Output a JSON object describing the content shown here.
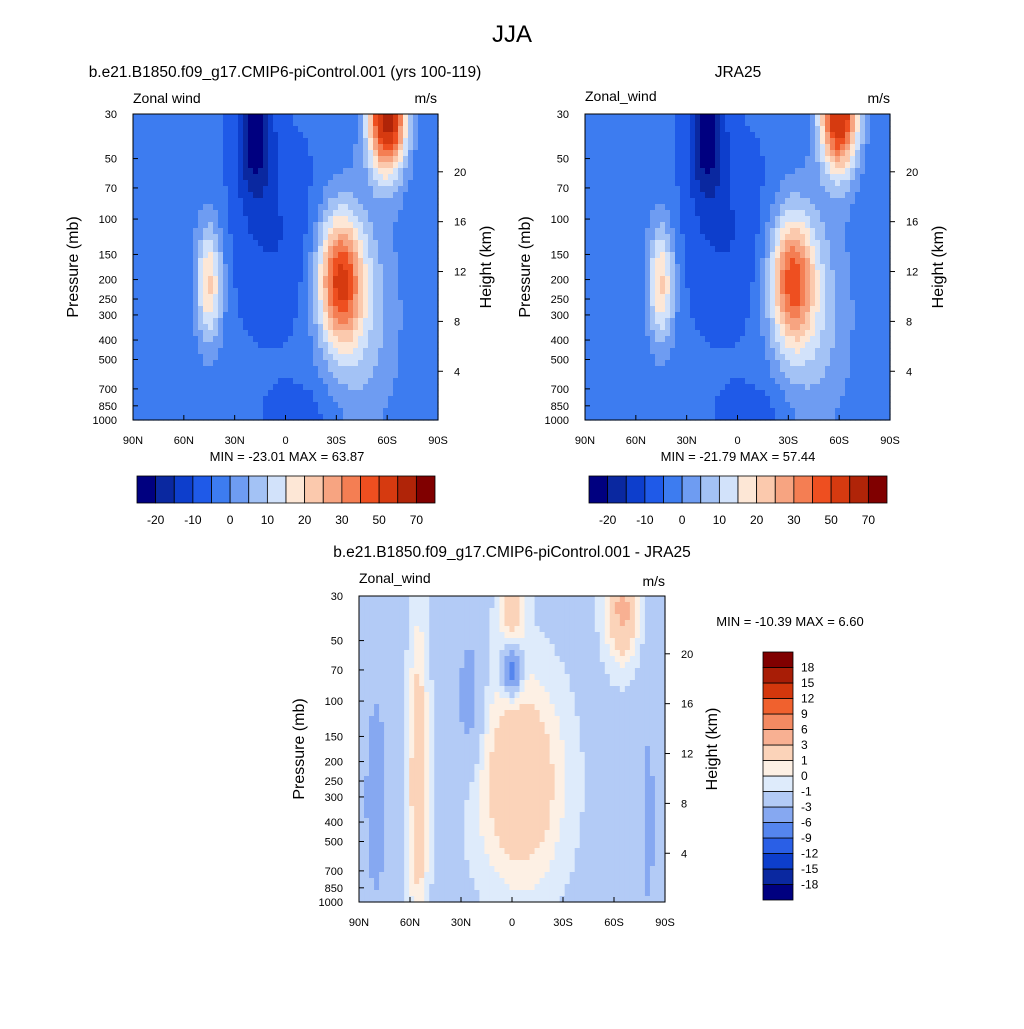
{
  "page": {
    "title": "JJA"
  },
  "colors": {
    "panel_palette": [
      "#000080",
      "#0a28a0",
      "#0d3ecc",
      "#1f5ae8",
      "#3d7cf0",
      "#6e9cf2",
      "#a3c2f5",
      "#d2e2fa",
      "#fde7d6",
      "#fbc9ad",
      "#f7a481",
      "#f47e53",
      "#ee4f20",
      "#d63a10",
      "#b02408",
      "#800000"
    ],
    "diff_palette": [
      "#000080",
      "#0a28a0",
      "#0d3ecc",
      "#2a5fe6",
      "#5585ee",
      "#86a8f1",
      "#b3cbf6",
      "#deebfb",
      "#fdf0e4",
      "#fbd3b9",
      "#f8b092",
      "#f48a62",
      "#f0612e",
      "#d4370c",
      "#a81d06",
      "#800000"
    ]
  },
  "chart_data": [
    {
      "type": "contour",
      "title": "b.e21.B1850.f09_g17.CMIP6-piControl.001 (yrs 100-119)",
      "left_label": "Zonal wind",
      "right_label": "m/s",
      "ylabel": "Pressure (mb)",
      "ylabel_right": "Height (km)",
      "x_ticks": [
        "90N",
        "60N",
        "30N",
        "0",
        "30S",
        "60S",
        "90S"
      ],
      "y_ticks": [
        "30",
        "50",
        "70",
        "100",
        "150",
        "200",
        "250",
        "300",
        "400",
        "500",
        "700",
        "850",
        "1000"
      ],
      "height_ticks": [
        "20",
        "16",
        "12",
        "8",
        "4"
      ],
      "stats": "MIN = -23.01  MAX = 63.87",
      "colorbar_labels": [
        "-20",
        "-10",
        "0",
        "10",
        "20",
        "30",
        "50",
        "70"
      ],
      "jets": [
        {
          "lat": -45,
          "p": 200,
          "u": 22
        },
        {
          "lat": 20,
          "p": 35,
          "u": -22
        },
        {
          "lat": -60,
          "p": 35,
          "u": 60
        },
        {
          "lat": -30,
          "p": 200,
          "u": 45
        }
      ]
    },
    {
      "type": "contour",
      "title": "JRA25",
      "left_label": "Zonal_wind",
      "right_label": "m/s",
      "ylabel": "Pressure (mb)",
      "ylabel_right": "Height (km)",
      "x_ticks": [
        "90N",
        "60N",
        "30N",
        "0",
        "30S",
        "60S",
        "90S"
      ],
      "y_ticks": [
        "30",
        "50",
        "70",
        "100",
        "150",
        "200",
        "250",
        "300",
        "400",
        "500",
        "700",
        "850",
        "1000"
      ],
      "height_ticks": [
        "20",
        "16",
        "12",
        "8",
        "4"
      ],
      "stats": "MIN = -21.79  MAX = 57.44",
      "colorbar_labels": [
        "-20",
        "-10",
        "0",
        "10",
        "20",
        "30",
        "50",
        "70"
      ],
      "jets": [
        {
          "lat": -45,
          "p": 200,
          "u": 21
        },
        {
          "lat": 20,
          "p": 35,
          "u": -21
        },
        {
          "lat": -60,
          "p": 35,
          "u": 55
        },
        {
          "lat": -30,
          "p": 200,
          "u": 40
        }
      ]
    },
    {
      "type": "contour",
      "title": "b.e21.B1850.f09_g17.CMIP6-piControl.001 - JRA25",
      "left_label": "Zonal_wind",
      "right_label": "m/s",
      "ylabel": "Pressure (mb)",
      "ylabel_right": "Height (km)",
      "x_ticks": [
        "90N",
        "60N",
        "30N",
        "0",
        "30S",
        "60S",
        "90S"
      ],
      "y_ticks": [
        "30",
        "50",
        "70",
        "100",
        "150",
        "200",
        "250",
        "300",
        "400",
        "500",
        "700",
        "850",
        "1000"
      ],
      "height_ticks": [
        "20",
        "16",
        "12",
        "8",
        "4"
      ],
      "stats": "MIN = -10.39  MAX =   6.60",
      "colorbar_labels": [
        "18",
        "15",
        "12",
        "9",
        "6",
        "3",
        "1",
        "0",
        "-1",
        "-3",
        "-6",
        "-9",
        "-12",
        "-15",
        "-18"
      ]
    }
  ]
}
